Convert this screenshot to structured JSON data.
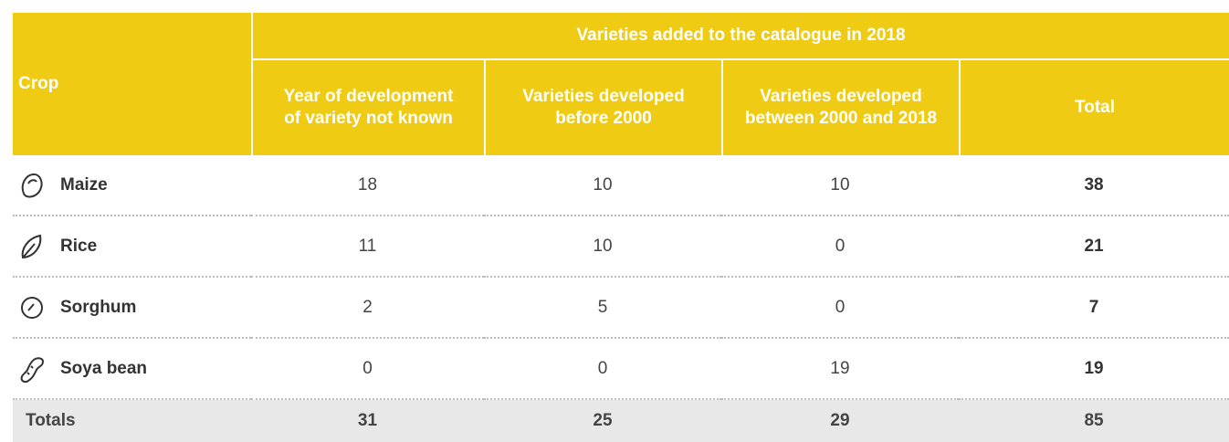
{
  "table": {
    "group_header": "Varieties added to the catalogue in 2018",
    "header": [
      "Crop",
      "Year of development of variety not known",
      "Varieties developed before 2000",
      "Varieties developed between 2000 and 2018",
      "Total"
    ],
    "rows": [
      [
        "Maize",
        18,
        10,
        10,
        38
      ],
      [
        "Rice",
        11,
        10,
        0,
        21
      ],
      [
        "Sorghum",
        2,
        5,
        0,
        7
      ],
      [
        "Soya bean",
        0,
        0,
        19,
        19
      ]
    ],
    "totals": [
      "Totals",
      31,
      25,
      29,
      85
    ]
  }
}
